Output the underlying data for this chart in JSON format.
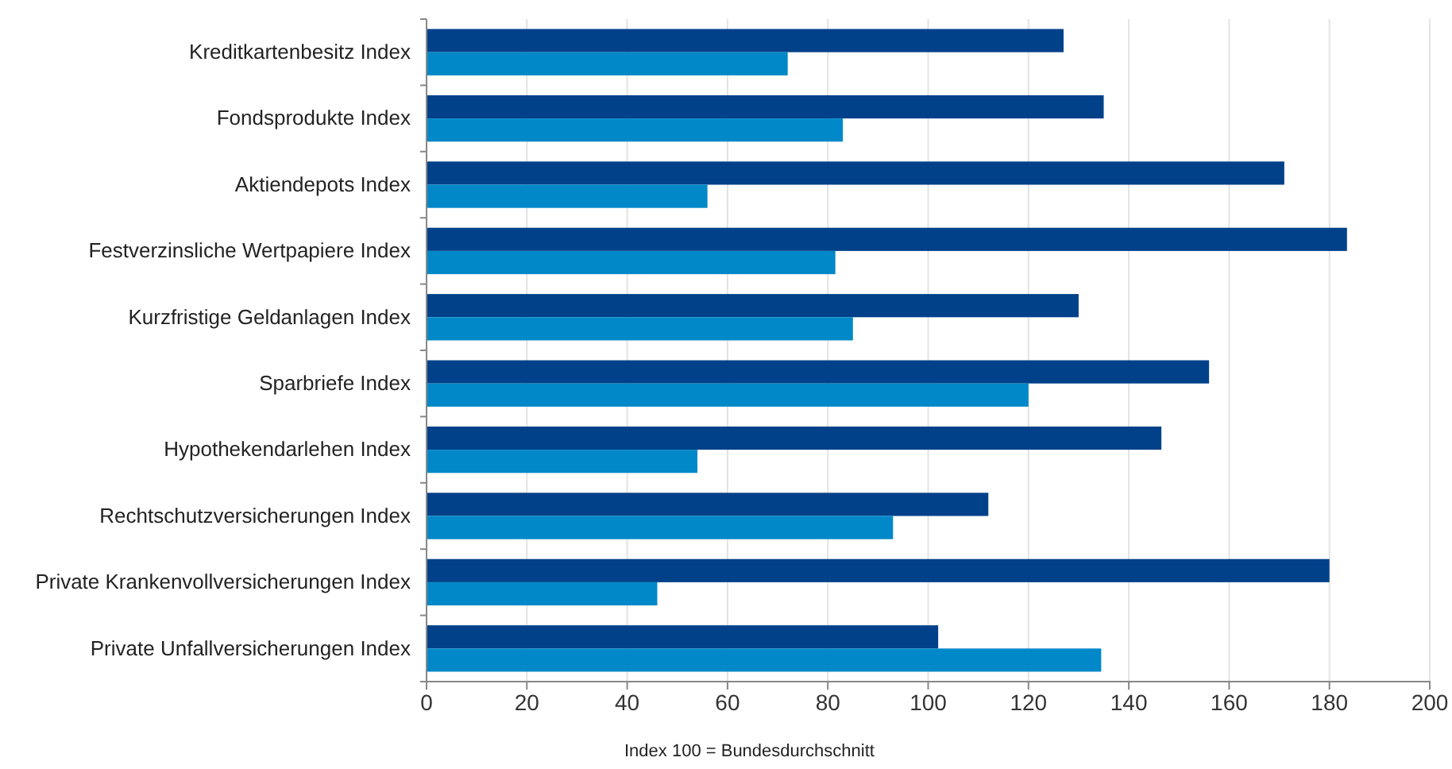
{
  "chart_data": {
    "type": "bar",
    "orientation": "horizontal",
    "categories": [
      "Kreditkartenbesitz Index",
      "Fondsprodukte Index",
      "Aktiendepots Index",
      "Festverzinsliche Wertpapiere Index",
      "Kurzfristige Geldanlagen Index",
      "Sparbriefe Index",
      "Hypothekendarlehen Index",
      "Rechtschutzversicherungen Index",
      "Private Krankenvollversicherungen Index",
      "Private Unfallversicherungen Index"
    ],
    "series": [
      {
        "color": "#00418a",
        "values": [
          127,
          135,
          171,
          183.5,
          130,
          156,
          146.5,
          112,
          180,
          102
        ]
      },
      {
        "color": "#0088c8",
        "values": [
          72,
          83,
          56,
          81.5,
          85,
          120,
          54,
          93,
          46,
          134.5
        ]
      }
    ],
    "xlim": [
      0,
      200
    ],
    "xticks": [
      0,
      20,
      40,
      60,
      80,
      100,
      120,
      140,
      160,
      180,
      200
    ],
    "grid": "x",
    "annotations": [
      "Index 100 = Bundesdurchschnitt"
    ]
  }
}
